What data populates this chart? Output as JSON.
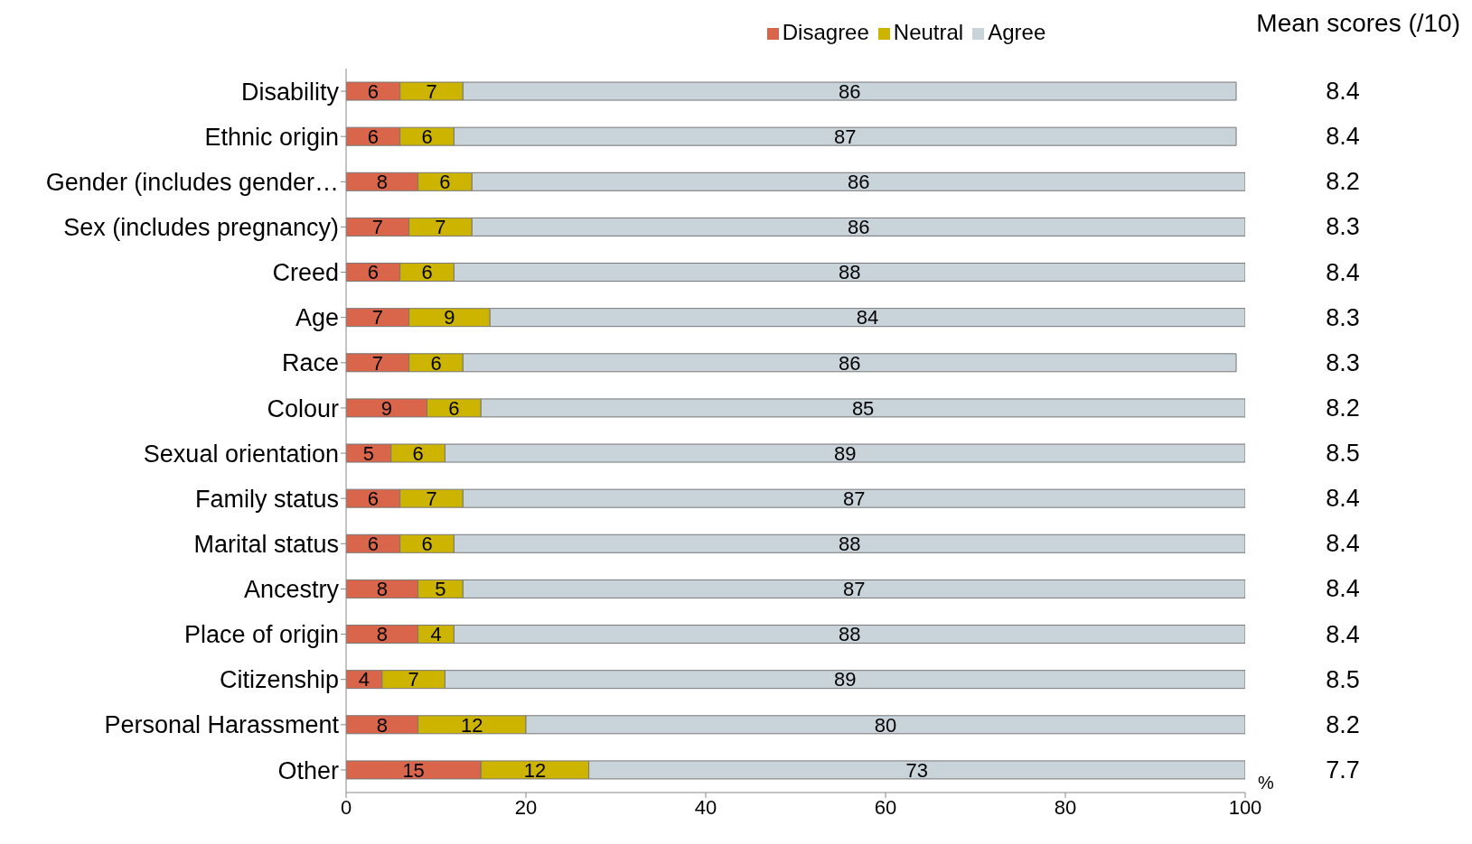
{
  "chart_data": {
    "type": "bar",
    "orientation": "horizontal",
    "stacked": true,
    "data_labels": true,
    "grid": false,
    "legend": "top",
    "xlabel": "%",
    "categories": [
      "Disability",
      "Ethnic origin",
      "Gender (includes gender…",
      "Sex (includes pregnancy)",
      "Creed",
      "Age",
      "Race",
      "Colour",
      "Sexual orientation",
      "Family status",
      "Marital status",
      "Ancestry",
      "Place of origin",
      "Citizenship",
      "Personal Harassment",
      "Other"
    ],
    "series": [
      {
        "name": "Disagree",
        "color": "#d9664b",
        "values": [
          6,
          6,
          8,
          7,
          6,
          7,
          7,
          9,
          5,
          6,
          6,
          8,
          8,
          4,
          8,
          15
        ]
      },
      {
        "name": "Neutral",
        "color": "#ccb400",
        "values": [
          7,
          6,
          6,
          7,
          6,
          9,
          6,
          6,
          6,
          7,
          6,
          5,
          4,
          7,
          12,
          12
        ]
      },
      {
        "name": "Agree",
        "color": "#c9d3da",
        "values": [
          86,
          87,
          86,
          86,
          88,
          84,
          86,
          85,
          89,
          87,
          88,
          87,
          88,
          89,
          80,
          73
        ]
      }
    ],
    "xlim": [
      0,
      100
    ],
    "xticks": [
      0,
      20,
      40,
      60,
      80,
      100
    ],
    "annotations": [
      "Mean scores (/10)",
      "8.4",
      "8.4",
      "8.2",
      "8.3",
      "8.4",
      "8.3",
      "8.3",
      "8.2",
      "8.5",
      "8.4",
      "8.4",
      "8.4",
      "8.4",
      "8.5",
      "8.2",
      "7.7"
    ]
  }
}
